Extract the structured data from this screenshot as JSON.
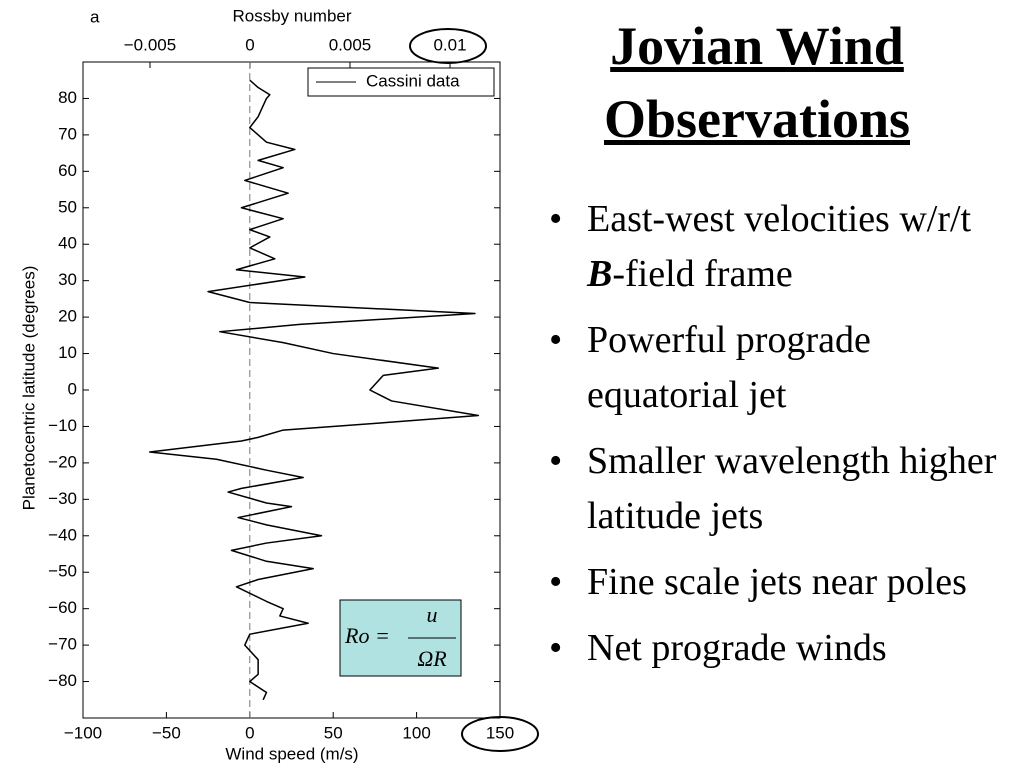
{
  "chart_data": {
    "type": "line",
    "panel_label": "a",
    "xlabel": "Wind speed (m/s)",
    "ylabel": "Planetocentric latitude (degrees)",
    "x2label": "Rossby number",
    "xlim": [
      -100,
      150
    ],
    "ylim": [
      -90,
      90
    ],
    "x2lim": [
      -0.00835,
      0.0125
    ],
    "xticks": [
      {
        "value": -100,
        "label": "−100"
      },
      {
        "value": -50,
        "label": "−50"
      },
      0,
      50,
      100,
      150
    ],
    "x2ticks": [
      {
        "value": -0.005,
        "label": "−0.005"
      },
      0,
      0.005,
      0.01
    ],
    "yticks": [
      {
        "value": -80,
        "label": "−80"
      },
      {
        "value": -70,
        "label": "−70"
      },
      {
        "value": -60,
        "label": "−60"
      },
      {
        "value": -50,
        "label": "−50"
      },
      {
        "value": -40,
        "label": "−40"
      },
      {
        "value": -30,
        "label": "−30"
      },
      {
        "value": -20,
        "label": "−20"
      },
      {
        "value": -10,
        "label": "−10"
      },
      0,
      10,
      20,
      30,
      40,
      50,
      60,
      70,
      80
    ],
    "reference_x": 0,
    "legend": "upper right",
    "latitude": [
      85,
      83,
      81,
      80,
      78,
      75,
      72,
      68,
      66,
      63,
      61,
      57.5,
      54,
      50,
      47,
      44,
      42,
      39,
      36,
      33,
      31,
      27,
      24,
      21,
      18,
      16,
      13,
      10,
      6,
      4,
      0,
      -3,
      -7,
      -9,
      -11,
      -13,
      -14,
      -17,
      -19,
      -22,
      -24,
      -27,
      -28,
      -31,
      -32,
      -35,
      -37,
      -40,
      -42,
      -44,
      -47,
      -49,
      -52,
      -54,
      -58,
      -60,
      -62,
      -64,
      -67,
      -70,
      -74,
      -78,
      -80,
      -83,
      -85
    ],
    "series": [
      {
        "name": "Cassini data",
        "color": "#000000",
        "values": [
          0,
          5,
          12,
          10,
          8,
          5,
          0,
          10,
          27,
          5,
          20,
          -3,
          23,
          -5,
          20,
          0,
          12,
          0,
          15,
          -8,
          33,
          -25,
          0,
          135,
          30,
          -18,
          20,
          50,
          113,
          80,
          72,
          85,
          137,
          80,
          20,
          5,
          -5,
          -60,
          -20,
          10,
          32,
          -5,
          -13,
          10,
          25,
          -7,
          10,
          43,
          10,
          -11,
          10,
          38,
          5,
          -8,
          10,
          20,
          18,
          35,
          0,
          -3,
          5,
          5,
          0,
          10,
          8
        ]
      }
    ],
    "formula": {
      "lhs": "Ro =",
      "numerator": "u",
      "denominator": "ΩR"
    }
  },
  "slide": {
    "title_lines": [
      "Jovian Wind",
      "Observations"
    ],
    "bullet_0": [
      "East-west velocities w/r/t ",
      "B",
      "-field frame"
    ],
    "bullets": [
      "Powerful prograde equatorial jet",
      "Smaller wavelength higher latitude jets",
      "Fine scale jets near poles",
      "Net prograde winds"
    ]
  }
}
